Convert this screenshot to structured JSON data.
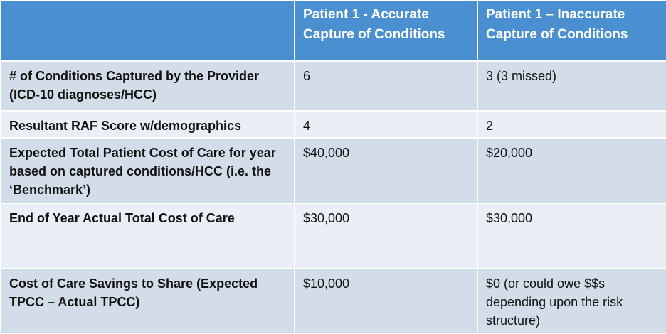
{
  "table": {
    "headers": [
      "",
      "Patient 1 - Accurate Capture of Conditions",
      "Patient 1 – Inaccurate Capture of Conditions"
    ],
    "rows": [
      {
        "label": "# of Conditions Captured by the Provider (ICD-10 diagnoses/HCC)",
        "accurate": "6",
        "inaccurate": "3 (3 missed)"
      },
      {
        "label": "Resultant RAF Score w/demographics",
        "accurate": "4",
        "inaccurate": "2"
      },
      {
        "label": "Expected Total Patient Cost of Care for year based on captured conditions/HCC (i.e. the ‘Benchmark’)",
        "accurate": "$40,000",
        "inaccurate": "$20,000"
      },
      {
        "label": "End of Year Actual Total Cost of Care",
        "accurate": "$30,000",
        "inaccurate": "$30,000"
      },
      {
        "label": "Cost of Care Savings to Share (Expected TPCC – Actual TPCC)",
        "accurate": "$10,000",
        "inaccurate": "$0 (or could owe $$s depending upon the risk structure)"
      }
    ]
  },
  "colors": {
    "header_bg": "#4a90d0",
    "row_even_bg": "#d3dde9",
    "row_odd_bg": "#eaeff5",
    "border": "#ffffff"
  }
}
